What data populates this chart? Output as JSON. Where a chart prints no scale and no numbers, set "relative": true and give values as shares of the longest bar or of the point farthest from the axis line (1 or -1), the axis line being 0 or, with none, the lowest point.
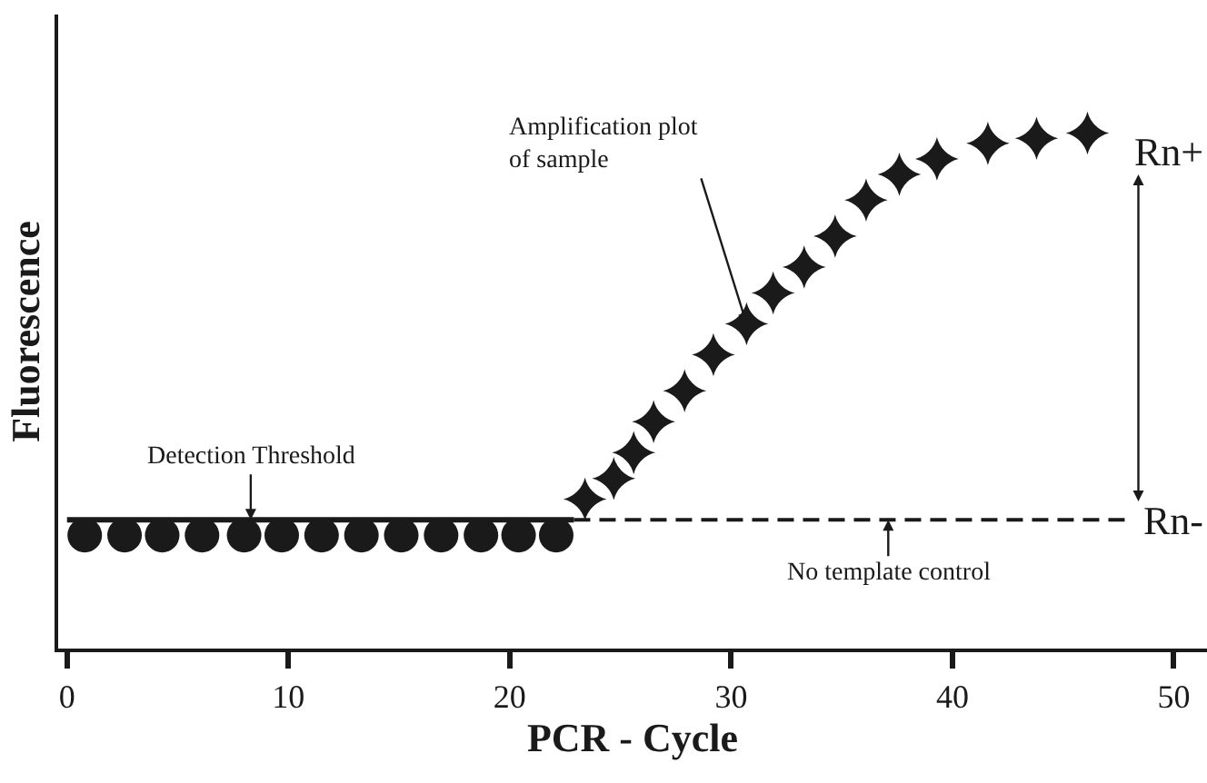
{
  "chart_data": {
    "type": "scatter",
    "relative": true,
    "xlabel": "PCR - Cycle",
    "ylabel": "Fluorescence",
    "xlim": [
      -0.4,
      51.5
    ],
    "xticks": [
      0,
      10,
      20,
      30,
      40,
      50
    ],
    "series": [
      {
        "type": "line",
        "color": "#1a1a1a",
        "line_style": "solid",
        "marker": "none",
        "x": [
          0,
          22.9
        ],
        "values": [
          0.25,
          0.25
        ]
      },
      {
        "type": "line",
        "color": "#1a1a1a",
        "line_style": "dashed",
        "marker": "none",
        "x": [
          22.9,
          47.8
        ],
        "values": [
          0.25,
          0.25
        ]
      },
      {
        "color": "#1a1a1a",
        "marker": "circle",
        "x": [
          0.8,
          2.6,
          4.3,
          6.1,
          8.0,
          9.7,
          11.5,
          13.3,
          15.1,
          16.9,
          18.7,
          20.4,
          22.1
        ],
        "values": [
          0.22,
          0.22,
          0.22,
          0.22,
          0.22,
          0.22,
          0.22,
          0.22,
          0.22,
          0.22,
          0.22,
          0.22,
          0.22
        ]
      },
      {
        "color": "#1a1a1a",
        "marker": "star",
        "x": [
          23.4,
          24.7,
          25.6,
          26.5,
          27.9,
          29.2,
          30.7,
          31.9,
          33.3,
          34.7,
          36.1,
          37.6,
          39.3,
          41.6,
          43.8,
          46.1
        ],
        "values": [
          0.29,
          0.33,
          0.38,
          0.44,
          0.5,
          0.57,
          0.63,
          0.69,
          0.74,
          0.8,
          0.87,
          0.92,
          0.95,
          0.98,
          0.99,
          1.0
        ]
      }
    ],
    "annotations": [
      {
        "text": "Amplification plot\nof sample",
        "x": 30.7,
        "y": 0.63
      },
      {
        "text": "Detection Threshold",
        "x": 8.3,
        "y": 0.25
      },
      {
        "text": "No template control",
        "x": 37.1,
        "y": 0.25
      },
      "Rn+",
      "Rn-"
    ]
  }
}
